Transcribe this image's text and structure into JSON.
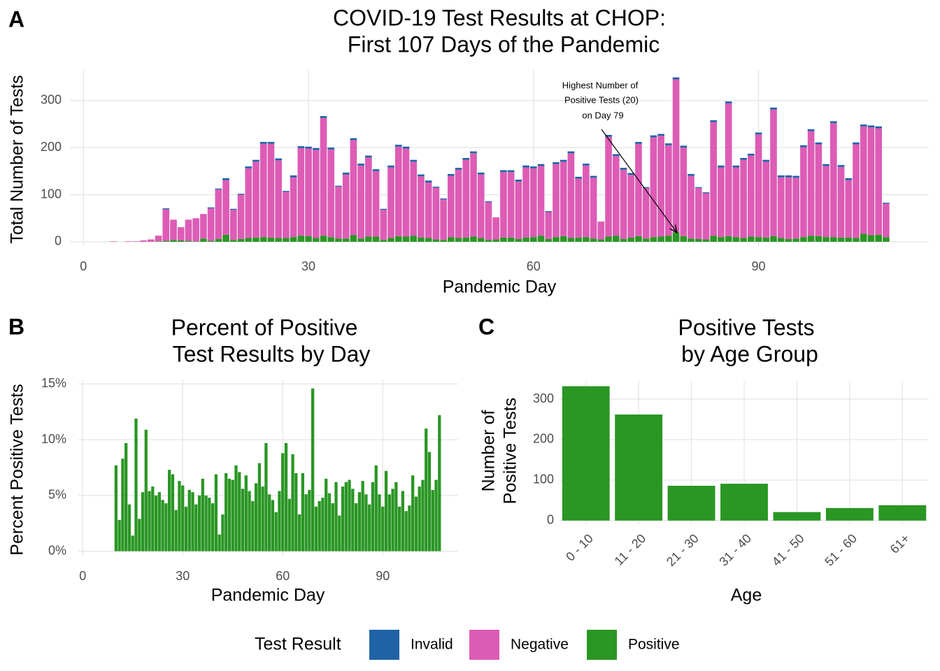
{
  "chart_data": [
    {
      "type": "bar",
      "stacked": true,
      "panel_label": "A",
      "title": [
        "COVID-19 Test Results at CHOP:",
        "First 107 Days of the Pandemic"
      ],
      "x_label": "Pandemic Day",
      "y_label": "Total Number of Tests",
      "annotation": [
        "Highest Number of",
        "Positive Tests (20)",
        "on Day 79"
      ],
      "legend_title": "Test Result",
      "legend": "bottom",
      "grid": true,
      "x": [
        4,
        5,
        6,
        7,
        8,
        9,
        10,
        11,
        12,
        13,
        14,
        15,
        16,
        17,
        18,
        19,
        20,
        21,
        22,
        23,
        24,
        25,
        26,
        27,
        28,
        29,
        30,
        31,
        32,
        33,
        34,
        35,
        36,
        37,
        38,
        39,
        40,
        41,
        42,
        43,
        44,
        45,
        46,
        47,
        48,
        49,
        50,
        51,
        52,
        53,
        54,
        55,
        56,
        57,
        58,
        59,
        60,
        61,
        62,
        63,
        64,
        65,
        66,
        67,
        68,
        69,
        70,
        71,
        72,
        73,
        74,
        75,
        76,
        77,
        78,
        79,
        80,
        81,
        82,
        83,
        84,
        85,
        86,
        87,
        88,
        89,
        90,
        91,
        92,
        93,
        94,
        95,
        96,
        97,
        98,
        99,
        100,
        101,
        102,
        103,
        104,
        105,
        106,
        107
      ],
      "series": [
        {
          "name": "Invalid",
          "color": "#1f62a6",
          "values": [
            0,
            0,
            0,
            0,
            0,
            0,
            0,
            2,
            0,
            0,
            0,
            0,
            0,
            2,
            2,
            4,
            2,
            2,
            4,
            4,
            4,
            4,
            4,
            2,
            4,
            4,
            4,
            4,
            4,
            4,
            2,
            4,
            4,
            4,
            4,
            4,
            2,
            4,
            4,
            4,
            4,
            4,
            4,
            2,
            2,
            4,
            4,
            4,
            4,
            4,
            2,
            0,
            4,
            4,
            4,
            4,
            4,
            4,
            2,
            4,
            4,
            4,
            4,
            4,
            4,
            0,
            4,
            4,
            4,
            4,
            4,
            2,
            4,
            4,
            4,
            4,
            4,
            4,
            2,
            2,
            4,
            4,
            4,
            4,
            4,
            4,
            4,
            4,
            4,
            4,
            4,
            4,
            4,
            4,
            4,
            4,
            4,
            4,
            4,
            4,
            4,
            4,
            4,
            2
          ]
        },
        {
          "name": "Negative",
          "color": "#dd5cb5",
          "values": [
            1,
            0,
            1,
            1,
            3,
            5,
            12,
            67,
            43,
            28,
            45,
            49,
            52,
            69,
            105,
            116,
            64,
            94,
            148,
            161,
            198,
            199,
            165,
            98,
            127,
            186,
            186,
            187,
            250,
            186,
            110,
            136,
            202,
            155,
            168,
            139,
            64,
            150,
            190,
            187,
            157,
            130,
            118,
            110,
            86,
            130,
            145,
            165,
            177,
            135,
            80,
            47,
            139,
            139,
            122,
            149,
            146,
            148,
            57,
            155,
            158,
            180,
            125,
            152,
            129,
            38,
            212,
            169,
            147,
            133,
            196,
            107,
            212,
            214,
            192,
            325,
            188,
            133,
            108,
            98,
            241,
            148,
            282,
            148,
            166,
            172,
            218,
            161,
            269,
            129,
            131,
            129,
            191,
            222,
            195,
            151,
            242,
            150,
            122,
            199,
            228,
            229,
            226,
            71
          ]
        },
        {
          "name": "Positive",
          "color": "#2a9624",
          "values": [
            0,
            0,
            0,
            0,
            0,
            0,
            1,
            2,
            4,
            3,
            2,
            1,
            7,
            2,
            6,
            15,
            4,
            6,
            8,
            9,
            10,
            9,
            8,
            8,
            10,
            13,
            12,
            8,
            13,
            10,
            7,
            7,
            14,
            7,
            11,
            11,
            4,
            8,
            12,
            11,
            13,
            9,
            8,
            5,
            4,
            10,
            8,
            9,
            11,
            8,
            4,
            5,
            9,
            9,
            6,
            9,
            10,
            13,
            6,
            10,
            12,
            8,
            9,
            10,
            7,
            5,
            11,
            13,
            6,
            9,
            12,
            7,
            10,
            11,
            13,
            20,
            12,
            7,
            6,
            5,
            13,
            10,
            12,
            10,
            8,
            11,
            10,
            9,
            12,
            8,
            6,
            7,
            10,
            13,
            12,
            10,
            10,
            9,
            9,
            8,
            17,
            14,
            15,
            10
          ]
        }
      ],
      "xlim": [
        -1.8,
        112.7
      ],
      "xticks": [
        0,
        30,
        60,
        90
      ],
      "ylim": [
        -9,
        365
      ],
      "yticks": [
        0,
        100,
        200,
        300
      ]
    },
    {
      "type": "bar",
      "panel_label": "B",
      "title": [
        "Percent of Positive",
        "Test Results by Day"
      ],
      "x_label": "Pandemic Day",
      "y_label": "Percent Positive Tests",
      "grid": true,
      "color": "#2a9624",
      "x": [
        10,
        11,
        12,
        13,
        14,
        15,
        16,
        17,
        18,
        19,
        20,
        21,
        22,
        23,
        24,
        25,
        26,
        27,
        28,
        29,
        30,
        31,
        32,
        33,
        34,
        35,
        36,
        37,
        38,
        39,
        40,
        41,
        42,
        43,
        44,
        45,
        46,
        47,
        48,
        49,
        50,
        51,
        52,
        53,
        54,
        55,
        56,
        57,
        58,
        59,
        60,
        61,
        62,
        63,
        64,
        65,
        66,
        67,
        68,
        69,
        70,
        71,
        72,
        73,
        74,
        75,
        76,
        77,
        78,
        79,
        80,
        81,
        82,
        83,
        84,
        85,
        86,
        87,
        88,
        89,
        90,
        91,
        92,
        93,
        94,
        95,
        96,
        97,
        98,
        99,
        100,
        101,
        102,
        103,
        104,
        105,
        106,
        107
      ],
      "values": [
        7.7,
        2.8,
        8.3,
        9.7,
        4.2,
        1.4,
        11.9,
        2.9,
        5.3,
        10.9,
        5.4,
        5.8,
        5.0,
        5.3,
        4.6,
        4.3,
        7.3,
        6.9,
        3.7,
        6.3,
        5.9,
        4.0,
        5.5,
        5.3,
        4.2,
        5.0,
        6.5,
        5.0,
        4.8,
        4.3,
        6.9,
        1.5,
        3.3,
        7.0,
        6.5,
        6.4,
        7.7,
        7.1,
        5.6,
        6.8,
        5.4,
        4.5,
        6.1,
        7.9,
        5.8,
        9.7,
        5.1,
        4.6,
        3.5,
        5.4,
        8.8,
        9.7,
        4.7,
        8.7,
        7.0,
        3.3,
        7.0,
        5.1,
        5.5,
        14.6,
        4.0,
        4.5,
        4.8,
        6.5,
        5.2,
        4.3,
        6.2,
        3.2,
        5.8,
        6.2,
        6.4,
        5.6,
        4.3,
        5.3,
        6.3,
        5.1,
        4.2,
        6.2,
        7.7,
        5.1,
        4.0,
        7.2,
        5.1,
        5.6,
        6.2,
        4.0,
        5.4,
        3.6,
        4.1,
        6.8,
        4.9,
        5.8,
        6.4,
        11.0,
        8.9,
        5.5,
        6.4,
        12.2
      ],
      "xlim": [
        -1.3,
        112.6
      ],
      "xticks": [
        0,
        30,
        60,
        90
      ],
      "ylim": [
        -0.4,
        15.4
      ],
      "yticks": [
        {
          "value": 0,
          "label": "0%"
        },
        {
          "value": 5,
          "label": "5%"
        },
        {
          "value": 10,
          "label": "10%"
        },
        {
          "value": 15,
          "label": "15%"
        }
      ]
    },
    {
      "type": "bar",
      "panel_label": "C",
      "title": [
        "Positive Tests",
        "by Age Group"
      ],
      "x_label": "Age",
      "y_label": [
        "Number of",
        "Positive Tests"
      ],
      "grid": true,
      "color": "#2a9624",
      "categories": [
        "0 - 10",
        "11 - 20",
        "21 - 30",
        "31 - 40",
        "41 - 50",
        "51 - 60",
        "61+"
      ],
      "values": [
        332,
        262,
        86,
        91,
        21,
        31,
        38
      ],
      "ylim": [
        -9,
        345
      ],
      "yticks": [
        0,
        100,
        200,
        300
      ]
    }
  ]
}
